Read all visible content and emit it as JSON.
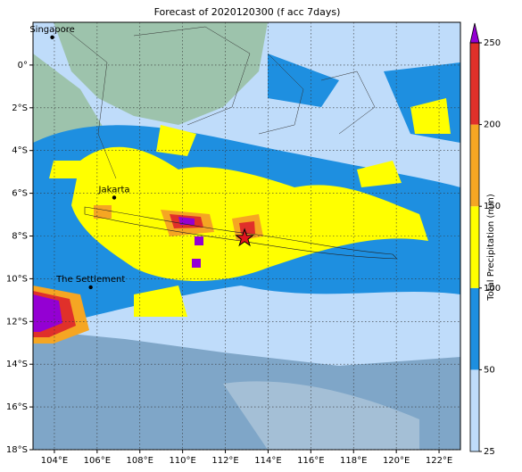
{
  "chart_data": {
    "type": "map",
    "title": "Forecast of 2020120300 (f acc 7days)",
    "xlim": [
      103,
      123
    ],
    "ylim": [
      -18,
      2
    ],
    "xticks": [
      {
        "value": 104,
        "label": "104°E"
      },
      {
        "value": 106,
        "label": "106°E"
      },
      {
        "value": 108,
        "label": "108°E"
      },
      {
        "value": 110,
        "label": "110°E"
      },
      {
        "value": 112,
        "label": "112°E"
      },
      {
        "value": 114,
        "label": "114°E"
      },
      {
        "value": 116,
        "label": "116°E"
      },
      {
        "value": 118,
        "label": "118°E"
      },
      {
        "value": 120,
        "label": "120°E"
      },
      {
        "value": 122,
        "label": "122°E"
      }
    ],
    "yticks": [
      {
        "value": 0,
        "label": "0°"
      },
      {
        "value": -2,
        "label": "2°S"
      },
      {
        "value": -4,
        "label": "4°S"
      },
      {
        "value": -6,
        "label": "6°S"
      },
      {
        "value": -8,
        "label": "8°S"
      },
      {
        "value": -10,
        "label": "10°S"
      },
      {
        "value": -12,
        "label": "12°S"
      },
      {
        "value": -14,
        "label": "14°S"
      },
      {
        "value": -16,
        "label": "16°S"
      },
      {
        "value": -18,
        "label": "18°S"
      }
    ],
    "grid": true,
    "places": [
      {
        "name": "Singapore",
        "lon": 103.9,
        "lat": 1.3
      },
      {
        "name": "Jakarta",
        "lon": 106.8,
        "lat": -6.2
      },
      {
        "name": "The Settlement",
        "lon": 105.7,
        "lat": -10.4
      }
    ],
    "marker": {
      "lon": 112.9,
      "lat": -8.1,
      "color": "#e0141e"
    },
    "colorbar": {
      "label": "Total Precipitation (mm)",
      "ticks": [
        25,
        50,
        100,
        150,
        200,
        250
      ],
      "colors": [
        "#bfdcfa",
        "#1e8fe0",
        "#ffff00",
        "#f5a623",
        "#e0302a"
      ],
      "over_color": "#9400d3"
    }
  }
}
